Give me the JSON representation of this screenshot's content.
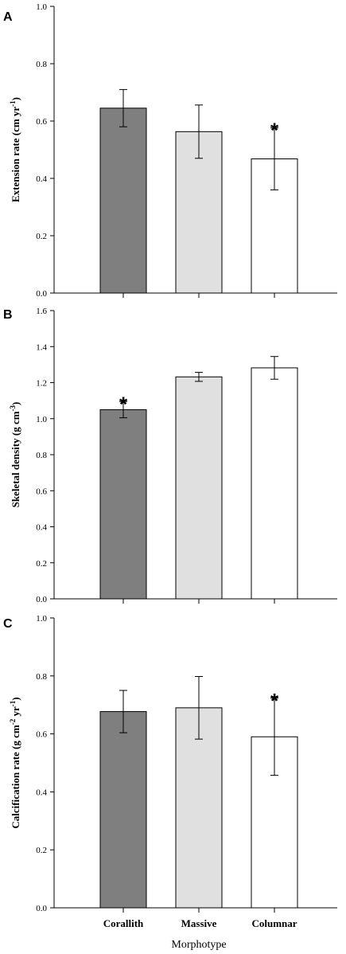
{
  "chart_data": [
    {
      "type": "bar",
      "panel": "A",
      "categories": [
        "Corallith",
        "Massive",
        "Columnar"
      ],
      "values": [
        0.645,
        0.563,
        0.468
      ],
      "errors": [
        0.065,
        0.093,
        0.108
      ],
      "significance": [
        "",
        "",
        "*"
      ],
      "ylabel_main": "Extension rate (cm yr",
      "ylabel_sup": "-1",
      "ylabel_end": ")",
      "ylim": [
        0.0,
        1.0
      ],
      "yticks": [
        "0.0",
        "0.2",
        "0.4",
        "0.6",
        "0.8",
        "1.0"
      ],
      "colors": [
        "#7f7f7f",
        "#e0e0e0",
        "#ffffff"
      ]
    },
    {
      "type": "bar",
      "panel": "B",
      "categories": [
        "Corallith",
        "Massive",
        "Columnar"
      ],
      "values": [
        1.05,
        1.232,
        1.282
      ],
      "errors": [
        0.045,
        0.025,
        0.063
      ],
      "significance": [
        "*",
        "",
        ""
      ],
      "ylabel_main": "Skeletal density (g cm",
      "ylabel_sup": "-3",
      "ylabel_end": ")",
      "ylim": [
        0.0,
        1.6
      ],
      "yticks": [
        "0.0",
        "0.2",
        "0.4",
        "0.6",
        "0.8",
        "1.0",
        "1.2",
        "1.4",
        "1.6"
      ],
      "colors": [
        "#7f7f7f",
        "#e0e0e0",
        "#ffffff"
      ]
    },
    {
      "type": "bar",
      "panel": "C",
      "categories": [
        "Corallith",
        "Massive",
        "Columnar"
      ],
      "values": [
        0.677,
        0.69,
        0.59
      ],
      "errors": [
        0.073,
        0.108,
        0.133
      ],
      "significance": [
        "",
        "",
        "*"
      ],
      "ylabel_main": "Calcification rate (g cm",
      "ylabel_sup": "-2",
      "ylabel_mid": " yr",
      "ylabel_sup2": "-1",
      "ylabel_end": ")",
      "ylim": [
        0.0,
        1.0
      ],
      "yticks": [
        "0.0",
        "0.2",
        "0.4",
        "0.6",
        "0.8",
        "1.0"
      ],
      "colors": [
        "#7f7f7f",
        "#e0e0e0",
        "#ffffff"
      ]
    }
  ],
  "xlabel": "Morphotype"
}
